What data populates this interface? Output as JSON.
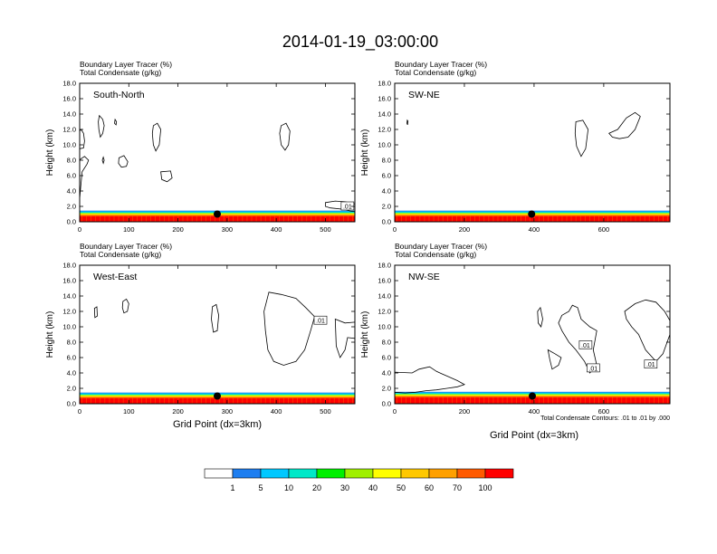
{
  "figure": {
    "title": "2014-01-19_03:00:00",
    "field_line1": "Boundary Layer Tracer   (%)",
    "field_line2": "Total Condensate   (g/kg)",
    "ylabel": "Height (km)",
    "xlabel": "Grid Point (dx=3km)",
    "contour_note": "Total Condensate Contours: .01 to .01 by .000"
  },
  "colorbar": {
    "colors": [
      "#ffffff",
      "#1e7ef0",
      "#00c8ff",
      "#00e8c8",
      "#00f000",
      "#a0f000",
      "#ffff00",
      "#ffc800",
      "#ffa000",
      "#ff5a00",
      "#ff0000"
    ],
    "labels": [
      "1",
      "5",
      "10",
      "20",
      "30",
      "40",
      "50",
      "60",
      "70",
      "100"
    ]
  },
  "chart_data": [
    {
      "type": "heatmap",
      "panel_label": "South-North",
      "x_ticks": [
        "0",
        "100",
        "200",
        "300",
        "400",
        "500"
      ],
      "x_tick_values": [
        0,
        100,
        200,
        300,
        400,
        500
      ],
      "xlim": [
        0,
        560
      ],
      "y_ticks": [
        "0.0",
        "2.0",
        "4.0",
        "6.0",
        "8.0",
        "10.0",
        "12.0",
        "14.0",
        "16.0",
        "18.0"
      ],
      "ylim": [
        0,
        18
      ],
      "marker": {
        "x": 280,
        "y": 1.0
      },
      "tracer_top_km": 1.2,
      "contours": [
        {
          "points": [
            [
              0,
              3.0
            ],
            [
              2,
              4.5
            ],
            [
              5,
              6.5
            ],
            [
              15,
              7.5
            ],
            [
              18,
              8.0
            ],
            [
              10,
              8.5
            ],
            [
              3,
              8.2
            ],
            [
              0,
              8.0
            ]
          ]
        },
        {
          "points": [
            [
              0,
              9.5
            ],
            [
              8,
              9.6
            ],
            [
              10,
              10.5
            ],
            [
              8,
              11.5
            ],
            [
              3,
              12.0
            ],
            [
              0,
              11.8
            ]
          ]
        },
        {
          "points": [
            [
              40,
              13.8
            ],
            [
              47,
              13.3
            ],
            [
              50,
              12.5
            ],
            [
              47,
              11.5
            ],
            [
              42,
              11.0
            ],
            [
              39,
              12.0
            ],
            [
              38,
              13.0
            ]
          ]
        },
        {
          "points": [
            [
              72,
              13.3
            ],
            [
              75,
              13.0
            ],
            [
              74,
              12.6
            ],
            [
              71,
              12.8
            ]
          ]
        },
        {
          "points": [
            [
              48,
              8.4
            ],
            [
              50,
              8.0
            ],
            [
              48,
              7.6
            ],
            [
              46,
              8.0
            ]
          ]
        },
        {
          "points": [
            [
              80,
              8.3
            ],
            [
              90,
              8.6
            ],
            [
              98,
              7.8
            ],
            [
              95,
              7.2
            ],
            [
              85,
              7.1
            ],
            [
              79,
              7.6
            ]
          ]
        },
        {
          "points": [
            [
              150,
              12.5
            ],
            [
              158,
              12.8
            ],
            [
              165,
              12.0
            ],
            [
              162,
              10.0
            ],
            [
              155,
              9.2
            ],
            [
              150,
              10.0
            ],
            [
              148,
              11.5
            ]
          ]
        },
        {
          "points": [
            [
              165,
              6.5
            ],
            [
              185,
              6.6
            ],
            [
              188,
              5.7
            ],
            [
              178,
              5.2
            ],
            [
              167,
              5.5
            ]
          ]
        },
        {
          "points": [
            [
              410,
              12.5
            ],
            [
              420,
              12.8
            ],
            [
              428,
              11.8
            ],
            [
              425,
              10.0
            ],
            [
              418,
              9.3
            ],
            [
              410,
              10.0
            ],
            [
              407,
              11.5
            ]
          ]
        },
        {
          "points": [
            [
              500,
              2.5
            ],
            [
              520,
              2.7
            ],
            [
              540,
              2.6
            ],
            [
              555,
              2.4
            ],
            [
              560,
              2.3
            ],
            [
              560,
              1.3
            ],
            [
              550,
              1.4
            ],
            [
              540,
              1.6
            ],
            [
              510,
              1.8
            ],
            [
              500,
              2.0
            ]
          ]
        }
      ],
      "contour_labels": [
        {
          "x": 545,
          "y": 2.0,
          "text": ".01"
        }
      ]
    },
    {
      "type": "heatmap",
      "panel_label": "SW-NE",
      "x_ticks": [
        "0",
        "200",
        "400",
        "600"
      ],
      "x_tick_values": [
        0,
        200,
        400,
        600
      ],
      "xlim": [
        0,
        790
      ],
      "y_ticks": [
        "0.0",
        "2.0",
        "4.0",
        "6.0",
        "8.0",
        "10.0",
        "12.0",
        "14.0",
        "16.0",
        "18.0"
      ],
      "ylim": [
        0,
        18
      ],
      "marker": {
        "x": 393,
        "y": 1.0
      },
      "tracer_top_km": 1.2,
      "contours": [
        {
          "points": [
            [
              36,
              13.2
            ],
            [
              38,
              13.1
            ],
            [
              37,
              12.6
            ],
            [
              35,
              12.8
            ]
          ]
        },
        {
          "points": [
            [
              520,
              13.0
            ],
            [
              540,
              13.2
            ],
            [
              555,
              12.0
            ],
            [
              548,
              9.5
            ],
            [
              535,
              8.5
            ],
            [
              522,
              9.8
            ],
            [
              518,
              11.5
            ]
          ]
        },
        {
          "points": [
            [
              615,
              11.5
            ],
            [
              640,
              12.0
            ],
            [
              665,
              13.5
            ],
            [
              690,
              14.2
            ],
            [
              705,
              13.7
            ],
            [
              690,
              12.0
            ],
            [
              670,
              11.0
            ],
            [
              645,
              10.8
            ],
            [
              625,
              11.0
            ]
          ]
        }
      ],
      "contour_labels": []
    },
    {
      "type": "heatmap",
      "panel_label": "West-East",
      "x_ticks": [
        "0",
        "100",
        "200",
        "300",
        "400",
        "500"
      ],
      "x_tick_values": [
        0,
        100,
        200,
        300,
        400,
        500
      ],
      "xlim": [
        0,
        560
      ],
      "y_ticks": [
        "0.0",
        "2.0",
        "4.0",
        "6.0",
        "8.0",
        "10.0",
        "12.0",
        "14.0",
        "16.0",
        "18.0"
      ],
      "ylim": [
        0,
        18
      ],
      "marker": {
        "x": 280,
        "y": 1.0
      },
      "tracer_top_km": 1.2,
      "contours": [
        {
          "points": [
            [
              30,
              12.4
            ],
            [
              35,
              12.6
            ],
            [
              36,
              11.4
            ],
            [
              31,
              11.2
            ]
          ]
        },
        {
          "points": [
            [
              88,
              13.3
            ],
            [
              95,
              13.6
            ],
            [
              100,
              13.0
            ],
            [
              97,
              12.0
            ],
            [
              90,
              11.8
            ],
            [
              87,
              12.5
            ]
          ]
        },
        {
          "points": [
            [
              270,
              12.6
            ],
            [
              278,
              12.9
            ],
            [
              283,
              11.5
            ],
            [
              280,
              9.5
            ],
            [
              272,
              9.3
            ],
            [
              268,
              11.0
            ]
          ]
        },
        {
          "points": [
            [
              385,
              14.5
            ],
            [
              410,
              14.2
            ],
            [
              440,
              13.7
            ],
            [
              460,
              12.5
            ],
            [
              478,
              11.3
            ],
            [
              470,
              9.5
            ],
            [
              458,
              7.0
            ],
            [
              440,
              5.5
            ],
            [
              415,
              5.0
            ],
            [
              395,
              5.5
            ],
            [
              383,
              7.0
            ],
            [
              378,
              9.5
            ],
            [
              375,
              12.0
            ]
          ]
        },
        {
          "points": [
            [
              520,
              11.0
            ],
            [
              540,
              10.5
            ],
            [
              560,
              10.6
            ],
            [
              560,
              8.5
            ],
            [
              545,
              8.6
            ],
            [
              540,
              7.0
            ],
            [
              530,
              6.0
            ],
            [
              522,
              7.5
            ]
          ]
        }
      ],
      "contour_labels": [
        {
          "x": 490,
          "y": 10.8,
          "text": ".01"
        }
      ]
    },
    {
      "type": "heatmap",
      "panel_label": "NW-SE",
      "x_ticks": [
        "0",
        "200",
        "400",
        "600"
      ],
      "x_tick_values": [
        0,
        200,
        400,
        600
      ],
      "xlim": [
        0,
        790
      ],
      "y_ticks": [
        "0.0",
        "2.0",
        "4.0",
        "6.0",
        "8.0",
        "10.0",
        "12.0",
        "14.0",
        "16.0",
        "18.0"
      ],
      "ylim": [
        0,
        18
      ],
      "marker": {
        "x": 395,
        "y": 1.0
      },
      "tracer_top_km": 1.3,
      "contours": [
        {
          "points": [
            [
              0,
              4.1
            ],
            [
              50,
              4.0
            ],
            [
              70,
              4.5
            ],
            [
              100,
              4.8
            ],
            [
              120,
              4.2
            ],
            [
              135,
              3.9
            ],
            [
              150,
              3.6
            ],
            [
              180,
              3.0
            ],
            [
              200,
              2.5
            ],
            [
              180,
              2.2
            ],
            [
              150,
              2.0
            ],
            [
              120,
              1.8
            ],
            [
              90,
              1.7
            ],
            [
              60,
              1.5
            ],
            [
              30,
              1.4
            ],
            [
              0,
              1.5
            ]
          ]
        },
        {
          "points": [
            [
              410,
              12.0
            ],
            [
              418,
              12.5
            ],
            [
              425,
              11.0
            ],
            [
              420,
              10.0
            ],
            [
              412,
              10.5
            ]
          ]
        },
        {
          "points": [
            [
              480,
              11.5
            ],
            [
              500,
              12.0
            ],
            [
              510,
              12.8
            ],
            [
              525,
              12.5
            ],
            [
              535,
              11.0
            ],
            [
              560,
              10.0
            ],
            [
              580,
              9.5
            ],
            [
              570,
              7.0
            ],
            [
              580,
              5.0
            ],
            [
              560,
              4.0
            ],
            [
              545,
              5.5
            ],
            [
              520,
              7.0
            ],
            [
              500,
              8.0
            ],
            [
              480,
              9.5
            ],
            [
              470,
              10.5
            ]
          ]
        },
        {
          "points": [
            [
              440,
              7.0
            ],
            [
              460,
              6.5
            ],
            [
              478,
              6.0
            ],
            [
              470,
              5.0
            ],
            [
              452,
              4.5
            ],
            [
              445,
              5.8
            ]
          ]
        },
        {
          "points": [
            [
              660,
              12.0
            ],
            [
              690,
              13.0
            ],
            [
              720,
              13.5
            ],
            [
              750,
              13.2
            ],
            [
              775,
              12.0
            ],
            [
              790,
              10.8
            ],
            [
              790,
              9.0
            ],
            [
              770,
              6.5
            ],
            [
              750,
              5.5
            ],
            [
              720,
              7.0
            ],
            [
              700,
              9.0
            ],
            [
              680,
              10.0
            ],
            [
              665,
              11.0
            ]
          ]
        }
      ],
      "contour_labels": [
        {
          "x": 548,
          "y": 7.6,
          "text": ".01"
        },
        {
          "x": 570,
          "y": 4.6,
          "text": ".01"
        },
        {
          "x": 735,
          "y": 5.1,
          "text": ".01"
        }
      ]
    }
  ]
}
